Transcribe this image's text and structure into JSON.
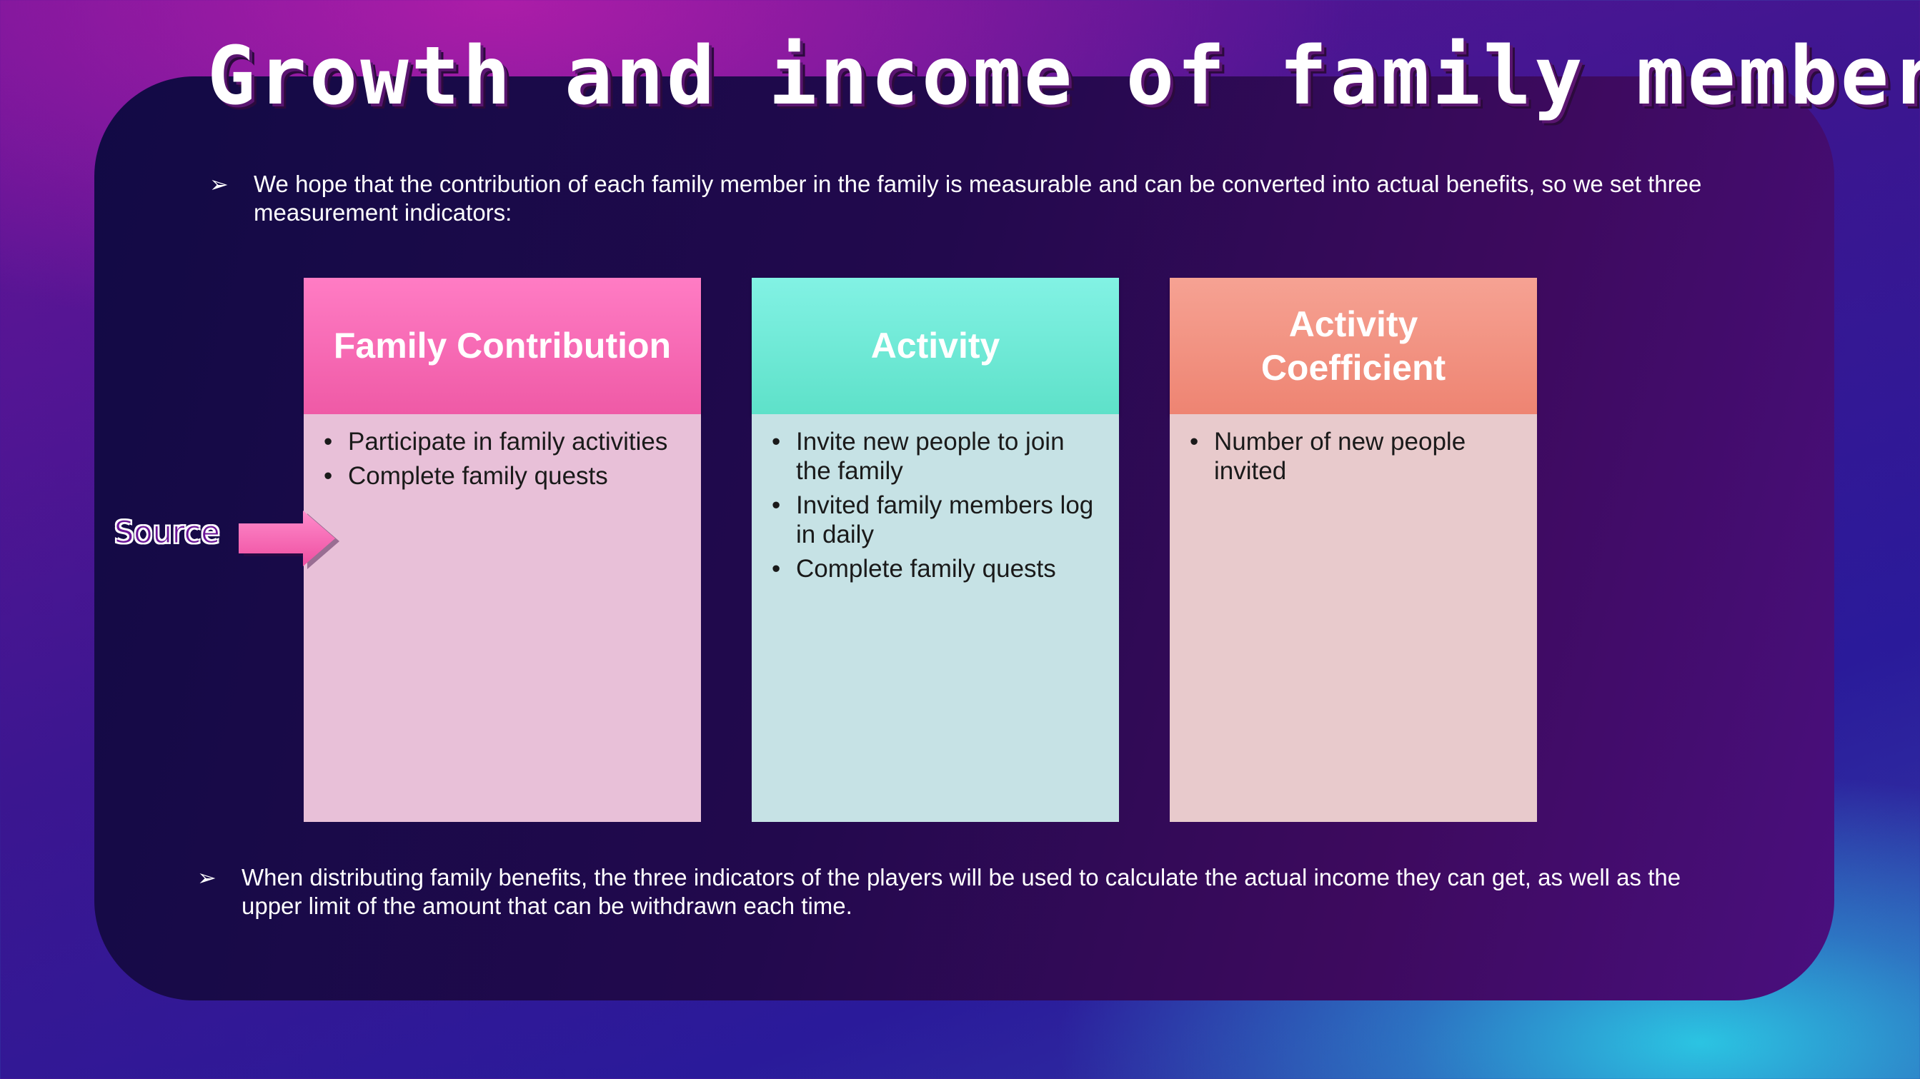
{
  "slide": {
    "title": "Growth and income of family members",
    "intro_bullet": "We hope that the contribution of each family member in the family is measurable and can be converted into actual benefits, so we set three measurement indicators:",
    "closing_bullet": "When distributing family benefits, the three indicators of the players will be used to calculate the actual income they can get, as well as the upper limit of the amount that can be withdrawn each time.",
    "bullet_mark": "➢",
    "source_label": "Source",
    "cards": [
      {
        "heading": "Family Contribution",
        "items": [
          "Participate in family activities",
          "Complete family quests"
        ],
        "header_color": "#f060ac",
        "body_color": "#e8c0d8"
      },
      {
        "heading": "Activity",
        "items": [
          "Invite new people to join the family",
          "Invited family members log in daily",
          "Complete family quests"
        ],
        "header_color": "#68e6d0",
        "body_color": "#c6e2e5"
      },
      {
        "heading": "Activity Coefficient",
        "items": [
          "Number of new people invited"
        ],
        "header_color": "#f08e7c",
        "body_color": "#e8cacc"
      }
    ]
  }
}
